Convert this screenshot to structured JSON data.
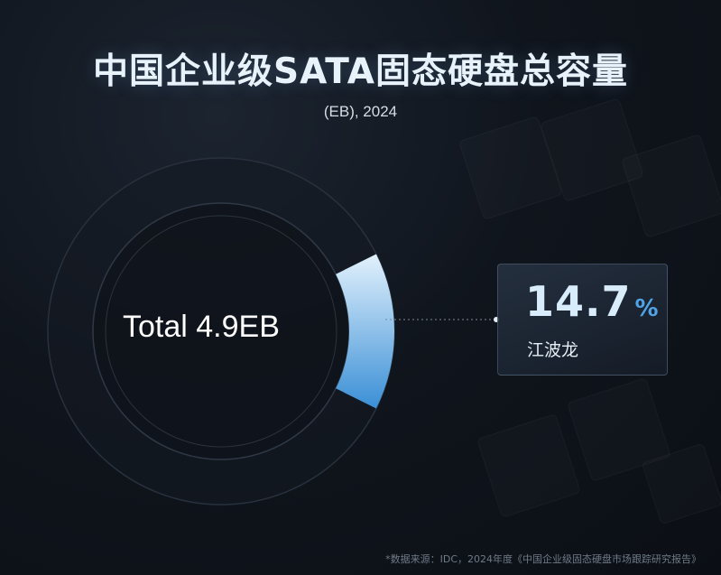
{
  "title": "中国企业级SATA固态硬盘总容量",
  "subtitle": "(EB), 2024",
  "total_label": "Total 4.9EB",
  "highlight": {
    "value": "14.7",
    "unit": "%",
    "name": "江波龙"
  },
  "footnote": "*数据来源：IDC，2024年度《中国企业级固态硬盘市场跟踪研究报告》",
  "colors": {
    "accent_light": "#d6ecfb",
    "accent_dark": "#3a8fd6",
    "ring": "#2a3340"
  },
  "chart_data": {
    "type": "pie",
    "title": "中国企业级SATA固态硬盘总容量",
    "subtitle": "(EB), 2024",
    "total": 4.9,
    "total_unit": "EB",
    "slices": [
      {
        "label": "江波龙",
        "value": 14.7
      }
    ]
  }
}
